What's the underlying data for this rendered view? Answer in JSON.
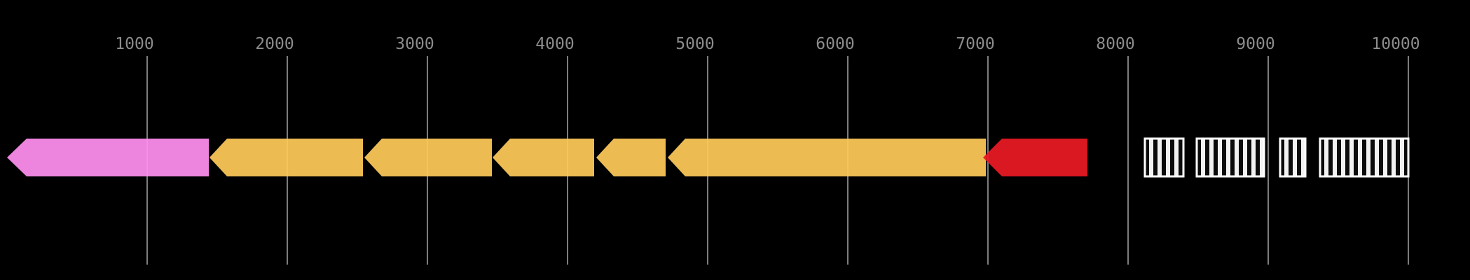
{
  "chart_data": {
    "type": "gene_arrow_map",
    "title": "",
    "description": "Genome annotation track on black background: left-pointing gene arrows and vertically hatched boxes aligned to a base-pair ruler",
    "axis": {
      "tick_values": [
        1000,
        2000,
        3000,
        4000,
        5000,
        6000,
        7000,
        8000,
        9000,
        10000
      ],
      "tick_labels": [
        "1000",
        "2000",
        "3000",
        "4000",
        "5000",
        "6000",
        "7000",
        "8000",
        "9000",
        "10000"
      ],
      "range_bp": [
        0,
        10440
      ],
      "gridlines": "vertical",
      "position": "top"
    },
    "features": [
      {
        "name": "pink-arrow",
        "kind": "arrow",
        "start": 0,
        "end": 1440,
        "strand": "-",
        "color_key": "pink",
        "head_bp": 140
      },
      {
        "name": "yellow-arrow-1",
        "kind": "arrow",
        "start": 1445,
        "end": 2540,
        "strand": "-",
        "color_key": "yellow",
        "head_bp": 125
      },
      {
        "name": "yellow-arrow-2",
        "kind": "arrow",
        "start": 2550,
        "end": 3460,
        "strand": "-",
        "color_key": "yellow",
        "head_bp": 125
      },
      {
        "name": "yellow-arrow-3",
        "kind": "arrow",
        "start": 3465,
        "end": 4190,
        "strand": "-",
        "color_key": "yellow",
        "head_bp": 125
      },
      {
        "name": "yellow-arrow-4",
        "kind": "arrow",
        "start": 4205,
        "end": 4700,
        "strand": "-",
        "color_key": "yellow",
        "head_bp": 125
      },
      {
        "name": "yellow-arrow-5",
        "kind": "arrow",
        "start": 4715,
        "end": 6985,
        "strand": "-",
        "color_key": "yellow",
        "head_bp": 125
      },
      {
        "name": "red-arrow",
        "kind": "arrow",
        "start": 6965,
        "end": 7710,
        "strand": "-",
        "color_key": "red",
        "head_bp": 135
      },
      {
        "name": "hatched-box-1",
        "kind": "striped_box",
        "start": 8120,
        "end": 8395
      },
      {
        "name": "hatched-box-2",
        "kind": "striped_box",
        "start": 8490,
        "end": 8970
      },
      {
        "name": "hatched-box-3",
        "kind": "striped_box",
        "start": 9085,
        "end": 9265
      },
      {
        "name": "hatched-box-4",
        "kind": "striped_box",
        "start": 9370,
        "end": 10000
      }
    ],
    "colors": {
      "background": "#000000",
      "gridline": "#7d7d7d",
      "tick_label": "#8c8c8c",
      "pink": "#ff8ff0",
      "yellow": "#fec958",
      "red": "#ea1a25",
      "stripe_fill": "#f2f2f2",
      "stripe_dark": "#0b0b0b",
      "stripe_border": "#ffffff"
    },
    "legend": null
  }
}
